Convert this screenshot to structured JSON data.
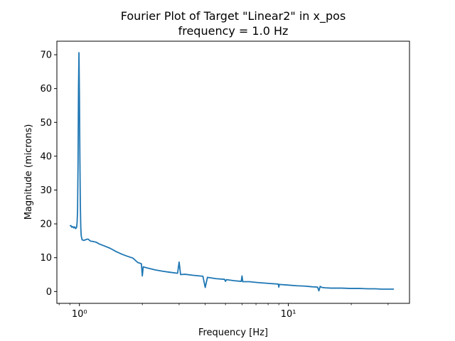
{
  "chart_data": {
    "type": "line",
    "title": "Fourier Plot of Target \"Linear2\" in x_pos",
    "subtitle": "frequency = 1.0 Hz",
    "xlabel": "Frequency [Hz]",
    "ylabel": "Magnitude (microns)",
    "xscale": "log",
    "xlim": [
      0.78,
      38
    ],
    "ylim": [
      -3.5,
      74
    ],
    "x_ticks": [
      {
        "value": 1,
        "label": "10⁰"
      },
      {
        "value": 10,
        "label": "10¹"
      }
    ],
    "y_ticks": [
      0,
      10,
      20,
      30,
      40,
      50,
      60,
      70
    ],
    "grid": false,
    "legend": "none",
    "color": "#1f77b4",
    "series": [
      {
        "x": [
          0.9,
          0.91,
          0.92,
          0.93,
          0.94,
          0.95,
          0.96,
          0.97,
          0.975,
          0.98,
          0.985,
          0.99,
          0.995,
          1.0,
          1.005,
          1.01,
          1.015,
          1.02,
          1.03,
          1.05,
          1.08,
          1.1,
          1.13,
          1.16,
          1.2,
          1.25,
          1.3,
          1.4,
          1.5,
          1.6,
          1.7,
          1.8,
          1.9,
          1.98,
          2.0,
          2.02,
          2.1,
          2.3,
          2.5,
          2.7,
          2.95,
          3.0,
          3.05,
          3.2,
          3.5,
          3.9,
          4.0,
          4.1,
          4.5,
          4.95,
          5.0,
          5.05,
          5.5,
          5.95,
          6.0,
          6.05,
          6.5,
          7.0,
          8.0,
          8.95,
          9.0,
          9.05,
          10.0,
          11.0,
          12.0,
          13.0,
          13.8,
          14.0,
          14.2,
          14.5,
          15.0,
          16.0,
          18.0,
          20.0,
          22.0,
          24.0,
          25.0,
          26.0,
          28.0,
          30.0,
          32.0
        ],
        "values": [
          19.4,
          19.5,
          19.0,
          19.2,
          18.8,
          19.1,
          18.6,
          19.0,
          20.5,
          24,
          38,
          60,
          70.6,
          58,
          40,
          26,
          19,
          16.5,
          15.3,
          15.1,
          15.4,
          15.5,
          14.9,
          14.8,
          14.6,
          14.0,
          13.6,
          12.8,
          11.8,
          11.0,
          10.4,
          9.9,
          8.6,
          8.2,
          4.6,
          7.3,
          7.0,
          6.4,
          6.0,
          5.7,
          5.4,
          8.7,
          5.0,
          5.1,
          4.8,
          4.5,
          1.2,
          4.2,
          3.8,
          3.6,
          3.0,
          3.5,
          3.2,
          3.0,
          4.6,
          2.9,
          2.9,
          2.7,
          2.4,
          2.2,
          1.3,
          2.1,
          1.9,
          1.7,
          1.6,
          1.4,
          1.3,
          0.2,
          1.5,
          1.2,
          1.1,
          1.0,
          1.0,
          0.9,
          0.9,
          0.8,
          0.8,
          0.8,
          0.7,
          0.7,
          0.7
        ]
      }
    ]
  }
}
